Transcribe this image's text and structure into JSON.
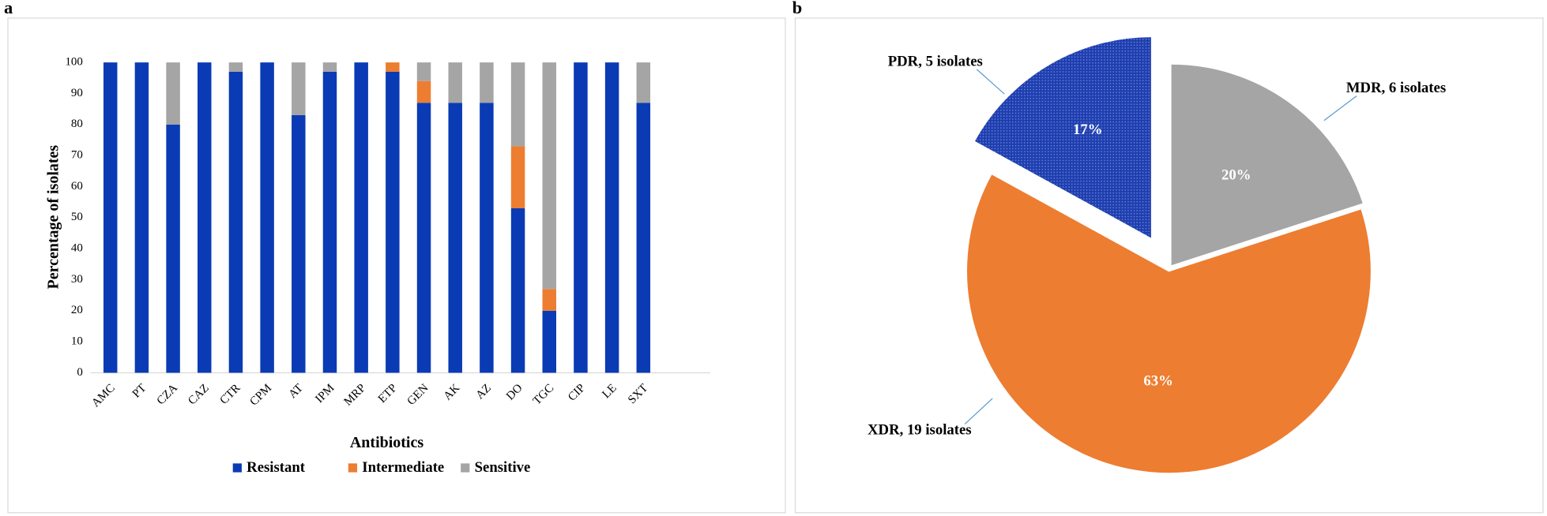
{
  "chart_data": [
    {
      "type": "stacked-bar",
      "panel": "a",
      "x_label": "Antibiotics",
      "y_label": "Percentage of isolates",
      "categories": [
        "AMC",
        "PT",
        "CZA",
        "CAZ",
        "CTR",
        "CPM",
        "AT",
        "IPM",
        "MRP",
        "ETP",
        "GEN",
        "AK",
        "AZ",
        "DO",
        "TGC",
        "CIP",
        "LE",
        "SXT"
      ],
      "series": [
        {
          "name": "Resistant",
          "color": "#0a3bb5",
          "values": [
            100,
            100,
            80,
            100,
            97,
            100,
            83,
            97,
            100,
            97,
            87,
            87,
            87,
            53,
            20,
            100,
            100,
            87
          ]
        },
        {
          "name": "Intermediate",
          "color": "#ed7d31",
          "values": [
            0,
            0,
            0,
            0,
            0,
            0,
            0,
            0,
            0,
            3,
            7,
            0,
            0,
            20,
            7,
            0,
            0,
            0
          ]
        },
        {
          "name": "Sensitive",
          "color": "#a5a5a5",
          "values": [
            0,
            0,
            20,
            0,
            3,
            0,
            17,
            3,
            0,
            0,
            6,
            13,
            13,
            27,
            73,
            0,
            0,
            13
          ]
        }
      ],
      "ylim": [
        0,
        100
      ],
      "yticks": [
        0,
        10,
        20,
        30,
        40,
        50,
        60,
        70,
        80,
        90,
        100
      ],
      "legend": "bottom"
    },
    {
      "type": "pie",
      "panel": "b",
      "categories": [
        "MDR, 6 isolates",
        "XDR, 19 isolates",
        "PDR, 5 isolates"
      ],
      "values": [
        20,
        63,
        17
      ],
      "value_labels": [
        "20%",
        "63%",
        "17%"
      ],
      "colors": [
        "#a5a5a5",
        "#ed7d31",
        "#1f3fb0"
      ],
      "exploded": [
        false,
        false,
        true
      ]
    }
  ]
}
